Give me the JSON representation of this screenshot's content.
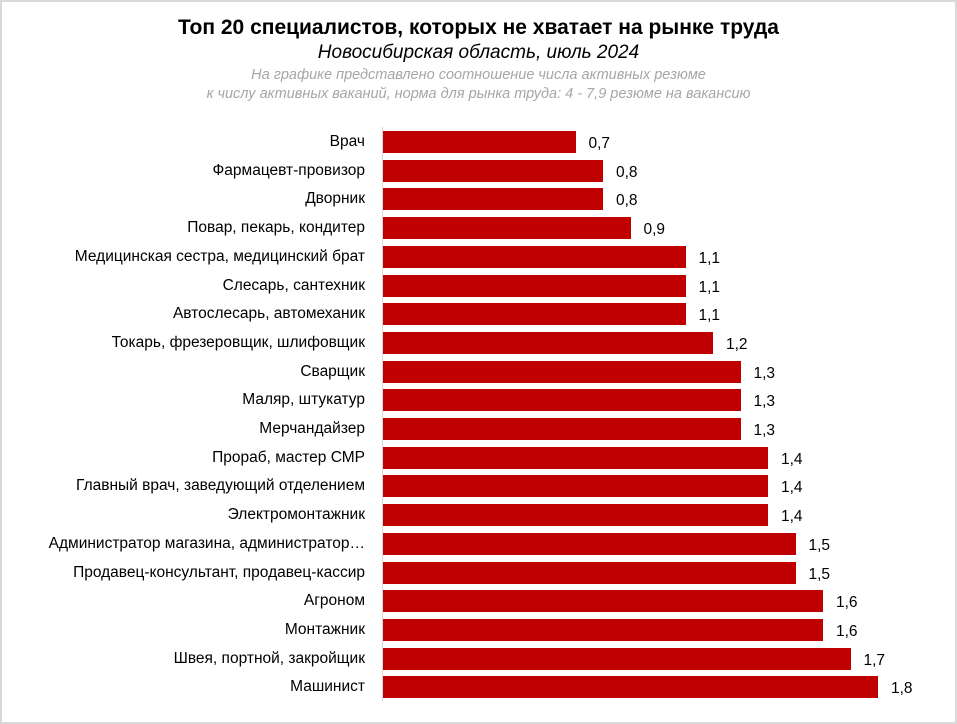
{
  "chart_data": {
    "type": "bar",
    "orientation": "horizontal",
    "title": "Топ 20 специалистов, которых не хватает на рынке труда",
    "subtitle": "Новосибирская область, июль 2024",
    "note_lines": [
      "На графике представлено соотношение числа активных резюме",
      "к числу активных ваканий,  норма для рынка труда: 4 - 7,9  резюме на вакансию"
    ],
    "xlabel": "",
    "ylabel": "",
    "xlim": [
      0,
      2
    ],
    "grid": false,
    "legend": null,
    "bar_color": "#c00000",
    "categories": [
      "Врач",
      "Фармацевт-провизор",
      "Дворник",
      "Повар, пекарь, кондитер",
      "Медицинская сестра, медицинский брат",
      "Слесарь, сантехник",
      "Автослесарь, автомеханик",
      "Токарь, фрезеровщик, шлифовщик",
      "Сварщик",
      "Маляр,  штукатур",
      "Мерчандайзер",
      "Прораб, мастер СМР",
      "Главный врач, заведующий отделением",
      "Электромонтажник",
      "Администратор магазина, администратор…",
      "Продавец-консультант, продавец-кассир",
      "Агроном",
      "Монтажник",
      "Швея, портной, закройщик",
      "Машинист"
    ],
    "values": [
      0.7,
      0.8,
      0.8,
      0.9,
      1.1,
      1.1,
      1.1,
      1.2,
      1.3,
      1.3,
      1.3,
      1.4,
      1.4,
      1.4,
      1.5,
      1.5,
      1.6,
      1.6,
      1.7,
      1.8
    ],
    "value_labels": [
      "0,7",
      "0,8",
      "0,8",
      "0,9",
      "1,1",
      "1,1",
      "1,1",
      "1,2",
      "1,3",
      "1,3",
      "1,3",
      "1,4",
      "1,4",
      "1,4",
      "1,5",
      "1,5",
      "1,6",
      "1,6",
      "1,7",
      "1,8"
    ]
  }
}
